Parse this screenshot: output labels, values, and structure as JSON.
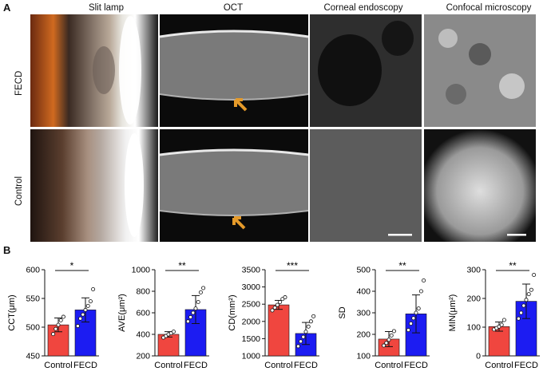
{
  "panels": {
    "a": {
      "letter": "A",
      "columns": [
        "Slit lamp",
        "OCT",
        "Corneal endoscopy",
        "Confocal microscopy"
      ],
      "rows": [
        "FECD",
        "Control"
      ]
    },
    "b": {
      "letter": "B"
    }
  },
  "colors": {
    "control": "#f0463f",
    "fecd": "#1c1cf2",
    "arrow": "#e59a2a"
  },
  "chart_data": [
    {
      "type": "bar",
      "ylabel": "CCT(μm)",
      "ylim": [
        450,
        600
      ],
      "yticks": [
        450,
        500,
        550,
        600
      ],
      "categories": [
        "Control",
        "FECD"
      ],
      "values": [
        504,
        530
      ],
      "sd": [
        12,
        21
      ],
      "sig": "*",
      "points": [
        [
          488,
          497,
          504,
          512,
          518
        ],
        [
          502,
          515,
          522,
          530,
          537,
          545,
          566
        ]
      ]
    },
    {
      "type": "bar",
      "ylabel": "AVE(μm²)",
      "ylim": [
        200,
        1000
      ],
      "yticks": [
        200,
        400,
        600,
        800,
        1000
      ],
      "categories": [
        "Control",
        "FECD"
      ],
      "values": [
        400,
        630
      ],
      "sd": [
        25,
        130
      ],
      "sig": "**",
      "points": [
        [
          370,
          385,
          400,
          410,
          425
        ],
        [
          520,
          560,
          600,
          640,
          700,
          790,
          830
        ]
      ]
    },
    {
      "type": "bar",
      "ylabel": "CD(mm²)",
      "ylim": [
        1000,
        3500
      ],
      "yticks": [
        1000,
        1500,
        2000,
        2500,
        3000,
        3500
      ],
      "categories": [
        "Control",
        "FECD"
      ],
      "values": [
        2480,
        1650
      ],
      "sd": [
        130,
        320
      ],
      "sig": "***",
      "points": [
        [
          2320,
          2400,
          2480,
          2560,
          2650,
          2700
        ],
        [
          1280,
          1420,
          1550,
          1700,
          1850,
          2000,
          2150
        ]
      ]
    },
    {
      "type": "bar",
      "ylabel": "SD",
      "ylim": [
        100,
        500
      ],
      "yticks": [
        100,
        200,
        300,
        400,
        500
      ],
      "categories": [
        "Control",
        "FECD"
      ],
      "values": [
        178,
        295
      ],
      "sd": [
        35,
        88
      ],
      "sig": "**",
      "points": [
        [
          148,
          160,
          175,
          195,
          215
        ],
        [
          220,
          250,
          275,
          300,
          320,
          400,
          450
        ]
      ]
    },
    {
      "type": "bar",
      "ylabel": "MIN(μm²)",
      "ylim": [
        0,
        300
      ],
      "yticks": [
        0,
        100,
        200,
        300
      ],
      "categories": [
        "Control",
        "FECD"
      ],
      "values": [
        102,
        190
      ],
      "sd": [
        16,
        60
      ],
      "sig": "**",
      "points": [
        [
          92,
          97,
          102,
          108,
          125
        ],
        [
          130,
          150,
          175,
          195,
          215,
          230,
          282
        ]
      ]
    }
  ]
}
